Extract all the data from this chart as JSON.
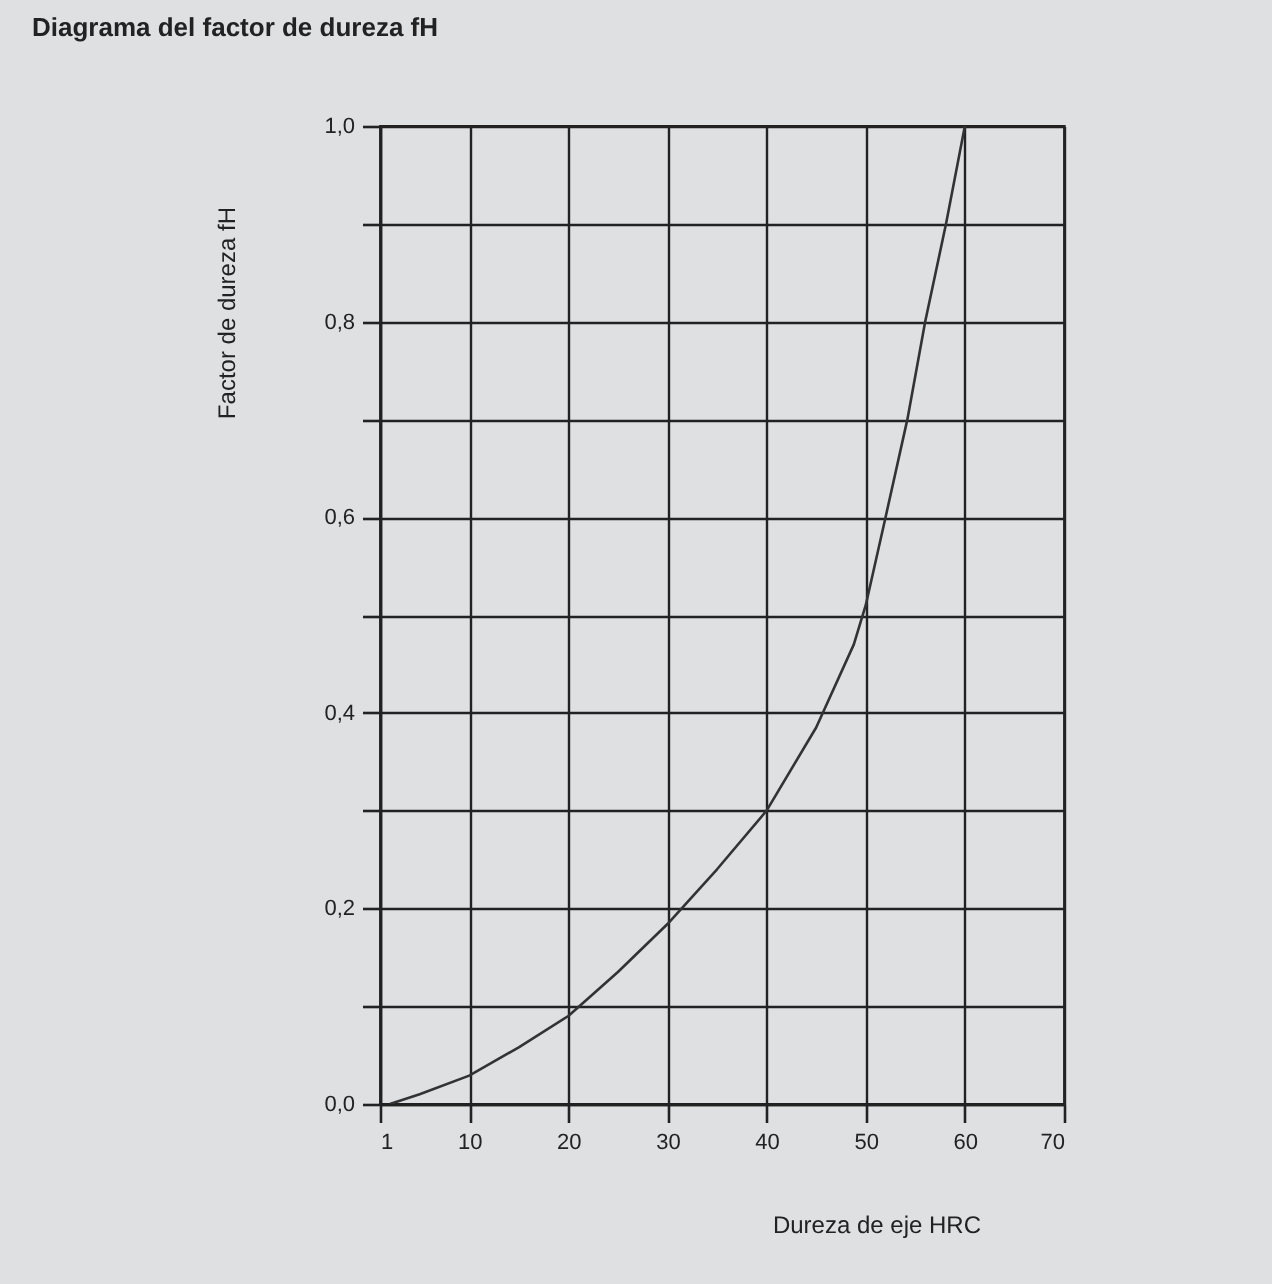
{
  "chart_data": {
    "type": "line",
    "title": "Diagrama del factor de dureza fH",
    "xlabel": "Dureza de eje HRC",
    "ylabel": "Factor de dureza fH",
    "x": [
      2,
      5,
      10,
      15,
      20,
      25,
      30,
      35,
      40,
      45,
      48.8,
      50,
      52,
      54.2,
      56,
      58.1,
      60
    ],
    "series": [
      {
        "color": "#333333",
        "values": [
          0,
          0.01,
          0.029,
          0.058,
          0.09,
          0.135,
          0.184,
          0.24,
          0.3,
          0.385,
          0.47,
          0.51,
          0.6,
          0.7,
          0.8,
          0.9,
          1
        ]
      }
    ],
    "xlim": [
      1,
      70
    ],
    "ylim": [
      0,
      1
    ],
    "xticks": [
      1,
      10,
      20,
      30,
      40,
      50,
      60,
      70
    ],
    "yticks": [
      {
        "value": 0,
        "label": "0,0"
      },
      {
        "value": 0.1,
        "label": null
      },
      {
        "value": 0.2,
        "label": "0,2"
      },
      {
        "value": 0.3,
        "label": null
      },
      {
        "value": 0.4,
        "label": "0,4"
      },
      {
        "value": 0.5,
        "label": null
      },
      {
        "value": 0.6,
        "label": "0,6"
      },
      {
        "value": 0.7,
        "label": null
      },
      {
        "value": 0.8,
        "label": "0,8"
      },
      {
        "value": 0.9,
        "label": null
      },
      {
        "value": 1,
        "label": "1,0"
      }
    ],
    "grid": true,
    "marker": "none",
    "line_style": "solid"
  }
}
